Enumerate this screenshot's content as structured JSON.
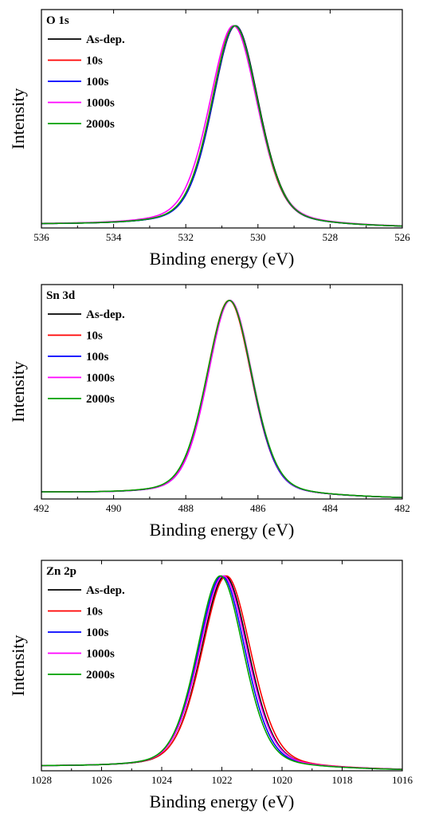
{
  "chart_data": [
    {
      "type": "line",
      "panel_label": "O 1s",
      "xlabel": "Binding energy (eV)",
      "ylabel": "Intensity",
      "xlim": [
        536,
        526
      ],
      "x_reversed": true,
      "xticks": [
        536,
        534,
        532,
        530,
        528,
        526
      ],
      "ylim": [
        0,
        1.08
      ],
      "y_ticks_labeled": false,
      "grid": false,
      "legend_position": "top-left",
      "baseline_left": 0.015,
      "baseline_right": 0.0,
      "series": [
        {
          "name": "As-dep.",
          "color": "#000000",
          "peak_x": 530.62,
          "peak_y": 1.0,
          "fwhm": 1.55,
          "lorentz_fraction": 0.35
        },
        {
          "name": "10s",
          "color": "#ff0000",
          "peak_x": 530.65,
          "peak_y": 1.0,
          "fwhm": 1.55,
          "lorentz_fraction": 0.35
        },
        {
          "name": "100s",
          "color": "#0000ff",
          "peak_x": 530.63,
          "peak_y": 1.0,
          "fwhm": 1.54,
          "lorentz_fraction": 0.35
        },
        {
          "name": "1000s",
          "color": "#ff00ff",
          "peak_x": 530.68,
          "peak_y": 1.0,
          "fwhm": 1.6,
          "lorentz_fraction": 0.37
        },
        {
          "name": "2000s",
          "color": "#00a000",
          "peak_x": 530.64,
          "peak_y": 1.0,
          "fwhm": 1.56,
          "lorentz_fraction": 0.35
        }
      ]
    },
    {
      "type": "line",
      "panel_label": "Sn 3d",
      "xlabel": "Binding energy (eV)",
      "ylabel": "Intensity",
      "xlim": [
        492,
        482
      ],
      "x_reversed": true,
      "xticks": [
        492,
        490,
        488,
        486,
        484,
        482
      ],
      "ylim": [
        0,
        1.08
      ],
      "y_ticks_labeled": false,
      "grid": false,
      "legend_position": "top-left",
      "baseline_left": 0.03,
      "baseline_right": 0.0,
      "series": [
        {
          "name": "As-dep.",
          "color": "#000000",
          "peak_x": 486.78,
          "peak_y": 1.0,
          "fwhm": 1.5,
          "lorentz_fraction": 0.3
        },
        {
          "name": "10s",
          "color": "#ff0000",
          "peak_x": 486.8,
          "peak_y": 1.0,
          "fwhm": 1.5,
          "lorentz_fraction": 0.3
        },
        {
          "name": "100s",
          "color": "#0000ff",
          "peak_x": 486.78,
          "peak_y": 1.0,
          "fwhm": 1.48,
          "lorentz_fraction": 0.3
        },
        {
          "name": "1000s",
          "color": "#ff00ff",
          "peak_x": 486.77,
          "peak_y": 1.0,
          "fwhm": 1.49,
          "lorentz_fraction": 0.3
        },
        {
          "name": "2000s",
          "color": "#00a000",
          "peak_x": 486.79,
          "peak_y": 1.0,
          "fwhm": 1.52,
          "lorentz_fraction": 0.3
        }
      ]
    },
    {
      "type": "line",
      "panel_label": "Zn 2p",
      "xlabel": "Binding energy (eV)",
      "ylabel": "Intensity",
      "xlim": [
        1028,
        1016
      ],
      "x_reversed": true,
      "xticks": [
        1028,
        1026,
        1024,
        1022,
        1020,
        1018,
        1016
      ],
      "ylim": [
        0,
        1.08
      ],
      "y_ticks_labeled": false,
      "grid": false,
      "legend_position": "top-left",
      "baseline_left": 0.02,
      "baseline_right": 0.0,
      "series": [
        {
          "name": "As-dep.",
          "color": "#000000",
          "peak_x": 1021.9,
          "peak_y": 1.0,
          "fwhm": 1.9,
          "lorentz_fraction": 0.3
        },
        {
          "name": "10s",
          "color": "#ff0000",
          "peak_x": 1021.85,
          "peak_y": 1.0,
          "fwhm": 1.95,
          "lorentz_fraction": 0.3
        },
        {
          "name": "100s",
          "color": "#0000ff",
          "peak_x": 1022.0,
          "peak_y": 1.0,
          "fwhm": 1.88,
          "lorentz_fraction": 0.3
        },
        {
          "name": "1000s",
          "color": "#ff00ff",
          "peak_x": 1021.95,
          "peak_y": 1.0,
          "fwhm": 1.92,
          "lorentz_fraction": 0.3
        },
        {
          "name": "2000s",
          "color": "#00a000",
          "peak_x": 1022.05,
          "peak_y": 1.0,
          "fwhm": 1.86,
          "lorentz_fraction": 0.3
        }
      ]
    }
  ]
}
